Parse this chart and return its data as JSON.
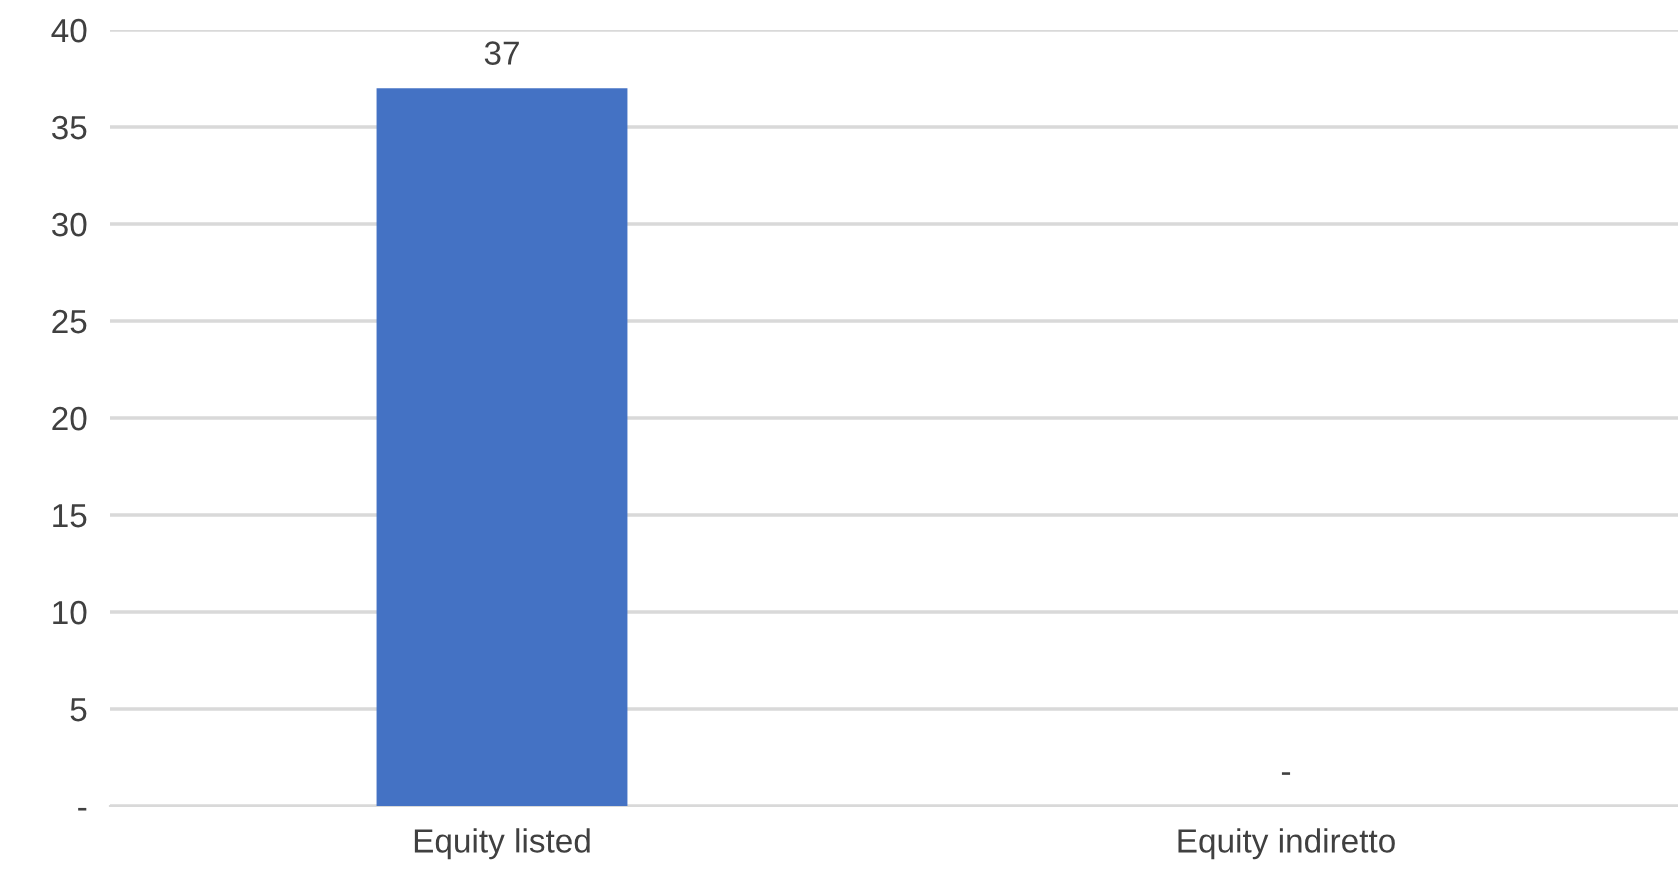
{
  "chart_data": {
    "type": "bar",
    "categories": [
      "Equity listed",
      "Equity indiretto"
    ],
    "values": [
      37,
      0
    ],
    "value_labels": [
      "37",
      "-"
    ],
    "color": "#4472c4",
    "ylim": [
      0,
      40
    ],
    "yticks": [
      {
        "value": 0,
        "label": "-"
      },
      5,
      10,
      15,
      20,
      25,
      30,
      35,
      40
    ],
    "grid": "y"
  }
}
